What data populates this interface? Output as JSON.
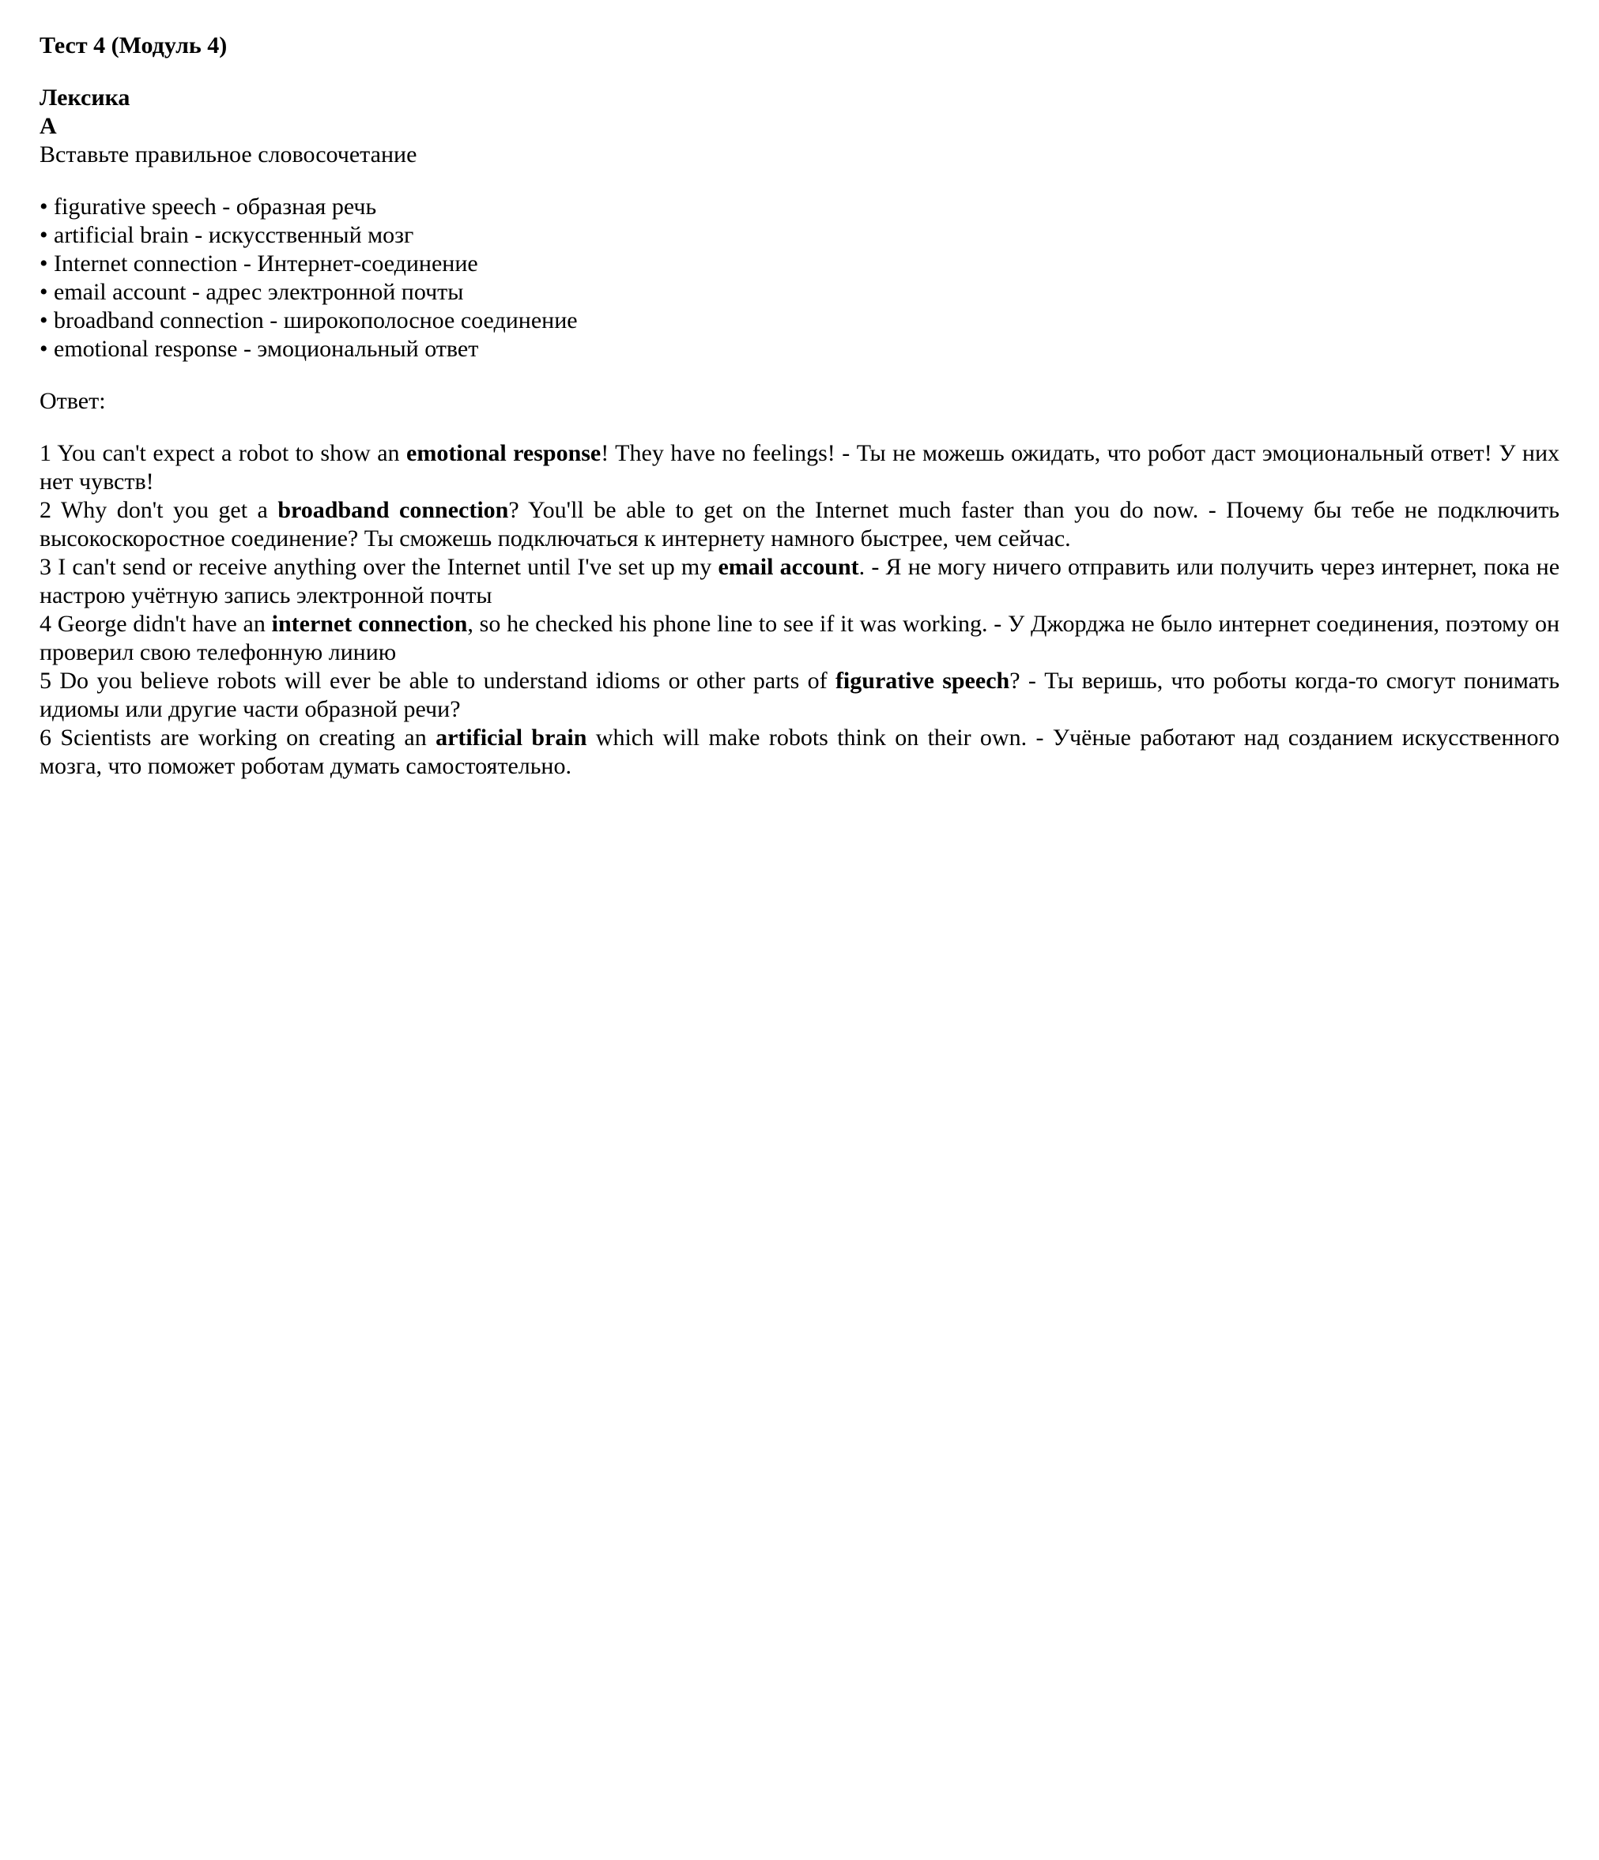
{
  "title": "Тест 4 (Модуль 4)",
  "subtitle": "Лексика",
  "section_letter": "А",
  "instruction": "Вставьте правильное словосочетание",
  "vocab": [
    "• figurative speech - образная речь",
    "• artificial brain - искусственный мозг",
    "• Internet connection - Интернет-соединение",
    "• email account - адрес электронной почты",
    "• broadband connection - широкополосное соединение",
    "• emotional response - эмоциональный ответ"
  ],
  "answer_label": "Ответ:",
  "answers": [
    {
      "num": "1",
      "pre": "You can't expect a robot to show an ",
      "bold": "emotional response",
      "post": "! They have no feelings! - Ты не можешь ожидать, что робот даст эмоциональный ответ! У них нет чувств!"
    },
    {
      "num": "2",
      "pre": "Why don't you get a ",
      "bold": "broadband connection",
      "post": "? You'll be able to get on the Internet much faster than you do now. - Почему бы тебе не подключить высокоскоростное соединение? Ты сможешь подключаться к интернету намного быстрее, чем сейчас."
    },
    {
      "num": "3",
      "pre": "I can't send or receive anything over the Internet until I've set up my ",
      "bold": "email account",
      "post": ". - Я не могу ничего отправить или получить через интернет, пока не настрою учётную запись электронной почты"
    },
    {
      "num": "4",
      "pre": "George didn't have an ",
      "bold": "internet connection",
      "post": ", so he checked his phone line to see if it was working. - У Джорджа не было интернет соединения, поэтому он проверил свою телефонную линию"
    },
    {
      "num": "5",
      "pre": "Do you believe robots will ever be able to understand idioms or other parts of ",
      "bold": "figurative speech",
      "post": "? - Ты веришь, что роботы когда-то смогут понимать идиомы или другие части образной речи?"
    },
    {
      "num": "6",
      "pre": "Scientists are working on creating an ",
      "bold": "artificial brain",
      "post": " which will make robots think on their own. - Учёные работают над созданием искусственного мозга, что поможет роботам думать самостоятельно."
    }
  ]
}
